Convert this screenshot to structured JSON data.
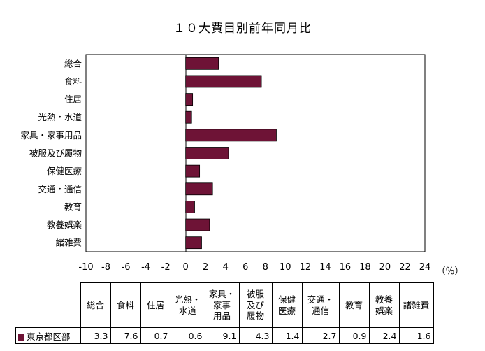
{
  "chart_data": {
    "type": "bar",
    "orientation": "horizontal",
    "title": "１０大費目別前年同月比",
    "unit_label": "（％）",
    "categories": [
      "総合",
      "食料",
      "住居",
      "光熱・水道",
      "家具・家事用品",
      "被服及び履物",
      "保健医療",
      "交通・通信",
      "教育",
      "教養娯楽",
      "諸雑費"
    ],
    "table_headers": [
      "総合",
      "食料",
      "住居",
      "光熱・\n水道",
      "家具・\n家事\n用品",
      "被服\n及び\n履物",
      "保健\n医療",
      "交通・\n通信",
      "教育",
      "教養\n娯楽",
      "諸雑費"
    ],
    "series": [
      {
        "name": "東京都区部",
        "color": "#6e1336",
        "values": [
          3.3,
          7.6,
          0.7,
          0.6,
          9.1,
          4.3,
          1.4,
          2.7,
          0.9,
          2.4,
          1.6
        ]
      }
    ],
    "xlim": [
      -10,
      24
    ],
    "xticks": [
      -10,
      -8,
      -6,
      -4,
      -2,
      0,
      2,
      4,
      6,
      8,
      10,
      12,
      14,
      16,
      18,
      20,
      22,
      24
    ],
    "grid": false,
    "legend": "data-table"
  }
}
